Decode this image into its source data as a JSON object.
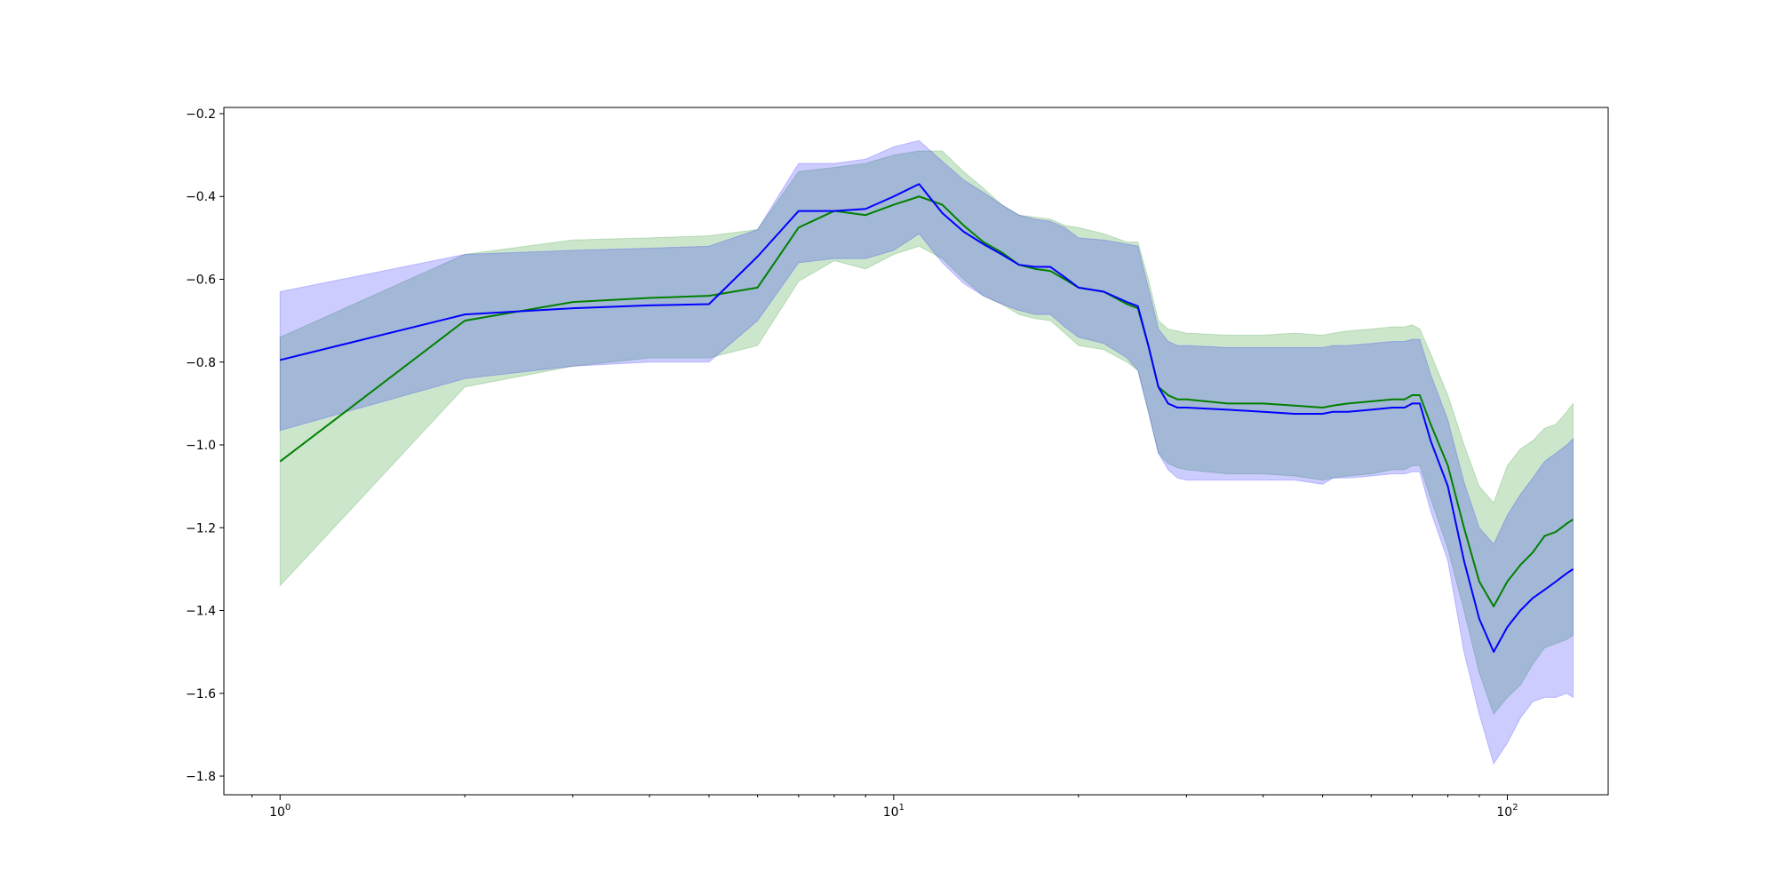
{
  "chart_data": {
    "type": "line",
    "title": "",
    "xlabel": "",
    "ylabel": "",
    "xscale": "log",
    "xlim": [
      0.81,
      146
    ],
    "ylim": [
      -1.845,
      -0.185
    ],
    "grid": false,
    "legend": null,
    "x_tick_labels": [
      {
        "value": 1,
        "base": "10",
        "exp": "0"
      },
      {
        "value": 10,
        "base": "10",
        "exp": "1"
      },
      {
        "value": 100,
        "base": "10",
        "exp": "2"
      }
    ],
    "y_ticks": [
      -1.8,
      -1.6,
      -1.4,
      -1.2,
      -1.0,
      -0.8,
      -0.6,
      -0.4,
      -0.2
    ],
    "y_tick_labels": [
      "−1.8",
      "−1.6",
      "−1.4",
      "−1.2",
      "−1.0",
      "−0.8",
      "−0.6",
      "−0.4",
      "−0.2"
    ],
    "series": [
      {
        "color": "#008000",
        "band_color": "#008000",
        "band_opacity": 0.2,
        "x": [
          1,
          2,
          3,
          4,
          5,
          6,
          7,
          8,
          9,
          10,
          11,
          12,
          13,
          14,
          15,
          16,
          17,
          18,
          19,
          20,
          22,
          24,
          25,
          26,
          27,
          28,
          29,
          30,
          35,
          40,
          45,
          50,
          52,
          55,
          60,
          65,
          68,
          70,
          72,
          75,
          80,
          85,
          90,
          95,
          100,
          105,
          110,
          115,
          120,
          125,
          128
        ],
        "y": [
          -1.04,
          -0.7,
          -0.655,
          -0.645,
          -0.64,
          -0.62,
          -0.475,
          -0.435,
          -0.445,
          -0.42,
          -0.4,
          -0.42,
          -0.47,
          -0.51,
          -0.535,
          -0.565,
          -0.575,
          -0.58,
          -0.6,
          -0.62,
          -0.63,
          -0.66,
          -0.67,
          -0.76,
          -0.86,
          -0.88,
          -0.89,
          -0.89,
          -0.9,
          -0.9,
          -0.905,
          -0.91,
          -0.905,
          -0.9,
          -0.895,
          -0.89,
          -0.89,
          -0.88,
          -0.88,
          -0.95,
          -1.05,
          -1.2,
          -1.33,
          -1.39,
          -1.33,
          -1.29,
          -1.26,
          -1.22,
          -1.21,
          -1.19,
          -1.18
        ],
        "upper": [
          -0.74,
          -0.54,
          -0.505,
          -0.5,
          -0.495,
          -0.48,
          -0.34,
          -0.33,
          -0.32,
          -0.3,
          -0.29,
          -0.29,
          -0.34,
          -0.38,
          -0.42,
          -0.445,
          -0.45,
          -0.455,
          -0.47,
          -0.475,
          -0.49,
          -0.51,
          -0.51,
          -0.6,
          -0.7,
          -0.72,
          -0.725,
          -0.73,
          -0.735,
          -0.735,
          -0.73,
          -0.735,
          -0.73,
          -0.725,
          -0.72,
          -0.715,
          -0.715,
          -0.71,
          -0.72,
          -0.78,
          -0.88,
          -1.0,
          -1.1,
          -1.14,
          -1.05,
          -1.01,
          -0.99,
          -0.96,
          -0.95,
          -0.92,
          -0.9
        ],
        "lower": [
          -1.34,
          -0.86,
          -0.81,
          -0.79,
          -0.79,
          -0.76,
          -0.605,
          -0.555,
          -0.575,
          -0.54,
          -0.52,
          -0.55,
          -0.6,
          -0.64,
          -0.66,
          -0.685,
          -0.695,
          -0.7,
          -0.73,
          -0.76,
          -0.77,
          -0.8,
          -0.82,
          -0.92,
          -1.02,
          -1.045,
          -1.055,
          -1.06,
          -1.07,
          -1.07,
          -1.075,
          -1.085,
          -1.08,
          -1.075,
          -1.07,
          -1.06,
          -1.06,
          -1.05,
          -1.05,
          -1.13,
          -1.25,
          -1.4,
          -1.55,
          -1.65,
          -1.61,
          -1.58,
          -1.53,
          -1.49,
          -1.48,
          -1.47,
          -1.46
        ]
      },
      {
        "color": "#0000ff",
        "band_color": "#0000ff",
        "band_opacity": 0.2,
        "x": [
          1,
          2,
          3,
          4,
          5,
          6,
          7,
          8,
          9,
          10,
          11,
          12,
          13,
          14,
          15,
          16,
          17,
          18,
          19,
          20,
          22,
          24,
          25,
          26,
          27,
          28,
          29,
          30,
          35,
          40,
          45,
          50,
          52,
          55,
          60,
          65,
          68,
          70,
          72,
          75,
          80,
          85,
          90,
          95,
          100,
          105,
          110,
          115,
          120,
          125,
          128
        ],
        "y": [
          -0.795,
          -0.685,
          -0.67,
          -0.663,
          -0.66,
          -0.545,
          -0.435,
          -0.435,
          -0.43,
          -0.4,
          -0.37,
          -0.44,
          -0.485,
          -0.515,
          -0.54,
          -0.565,
          -0.57,
          -0.57,
          -0.595,
          -0.62,
          -0.63,
          -0.655,
          -0.665,
          -0.76,
          -0.86,
          -0.9,
          -0.91,
          -0.91,
          -0.915,
          -0.92,
          -0.925,
          -0.925,
          -0.92,
          -0.92,
          -0.915,
          -0.91,
          -0.91,
          -0.9,
          -0.9,
          -0.99,
          -1.1,
          -1.28,
          -1.42,
          -1.5,
          -1.44,
          -1.4,
          -1.37,
          -1.35,
          -1.33,
          -1.31,
          -1.3
        ],
        "upper": [
          -0.63,
          -0.54,
          -0.53,
          -0.525,
          -0.52,
          -0.48,
          -0.32,
          -0.32,
          -0.31,
          -0.28,
          -0.265,
          -0.315,
          -0.36,
          -0.39,
          -0.42,
          -0.445,
          -0.455,
          -0.46,
          -0.475,
          -0.5,
          -0.505,
          -0.515,
          -0.52,
          -0.62,
          -0.72,
          -0.75,
          -0.76,
          -0.76,
          -0.765,
          -0.765,
          -0.765,
          -0.765,
          -0.76,
          -0.76,
          -0.755,
          -0.75,
          -0.75,
          -0.745,
          -0.745,
          -0.83,
          -0.94,
          -1.09,
          -1.2,
          -1.24,
          -1.17,
          -1.12,
          -1.08,
          -1.04,
          -1.02,
          -1.0,
          -0.985
        ],
        "lower": [
          -0.965,
          -0.84,
          -0.81,
          -0.8,
          -0.8,
          -0.7,
          -0.56,
          -0.55,
          -0.55,
          -0.53,
          -0.49,
          -0.56,
          -0.61,
          -0.64,
          -0.66,
          -0.675,
          -0.685,
          -0.685,
          -0.715,
          -0.74,
          -0.755,
          -0.79,
          -0.82,
          -0.92,
          -1.02,
          -1.06,
          -1.08,
          -1.085,
          -1.085,
          -1.085,
          -1.085,
          -1.095,
          -1.08,
          -1.08,
          -1.075,
          -1.07,
          -1.07,
          -1.065,
          -1.065,
          -1.16,
          -1.28,
          -1.5,
          -1.65,
          -1.77,
          -1.72,
          -1.66,
          -1.62,
          -1.61,
          -1.61,
          -1.6,
          -1.61
        ]
      }
    ]
  }
}
